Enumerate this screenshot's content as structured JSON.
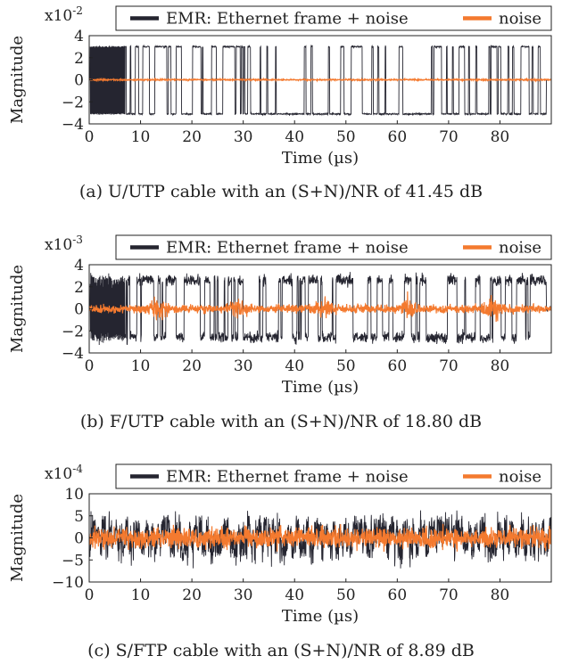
{
  "chart_data": [
    {
      "type": "line",
      "xlabel": "Time (µs)",
      "ylabel": "Magnitude",
      "y_exponent": "x10",
      "y_exponent_power": "-2",
      "xlim": [
        0,
        90
      ],
      "ylim": [
        -4,
        4
      ],
      "x_ticks": [
        0,
        10,
        20,
        30,
        40,
        50,
        60,
        70,
        80
      ],
      "y_ticks": [
        -4,
        -2,
        0,
        2,
        4
      ],
      "legend_placement": "top",
      "grid": false,
      "series": [
        {
          "name": "EMR: Ethernet frame + noise",
          "color": "#252530",
          "amplitude_high": 3.0,
          "amplitude_low": -3.1,
          "preamble_end": 7,
          "frame_end": 89,
          "noise_sd": 0.05
        },
        {
          "name": "noise",
          "color": "#f47a2f",
          "amplitude_high": 0.1,
          "amplitude_low": -0.1,
          "noise_sd": 0.04
        }
      ],
      "caption": "(a) U/UTP cable with an (S+N)/NR of 41.45 dB"
    },
    {
      "type": "line",
      "xlabel": "Time (µs)",
      "ylabel": "Magnitude",
      "y_exponent": "x10",
      "y_exponent_power": "-3",
      "xlim": [
        0,
        90
      ],
      "ylim": [
        -4,
        4
      ],
      "x_ticks": [
        0,
        10,
        20,
        30,
        40,
        50,
        60,
        70,
        80
      ],
      "y_ticks": [
        -4,
        -2,
        0,
        2,
        4
      ],
      "legend_placement": "top",
      "grid": false,
      "series": [
        {
          "name": "EMR: Ethernet frame + noise",
          "color": "#252530",
          "amplitude_high": 2.6,
          "amplitude_low": -2.6,
          "preamble_end": 7,
          "frame_end": 89,
          "noise_sd": 0.35
        },
        {
          "name": "noise",
          "color": "#f47a2f",
          "amplitude_high": 0.4,
          "amplitude_low": -0.4,
          "noise_sd": 0.25
        }
      ],
      "caption": "(b) F/UTP cable with an (S+N)/NR of 18.80 dB"
    },
    {
      "type": "line",
      "xlabel": "Time (µs)",
      "ylabel": "Magnitude",
      "y_exponent": "x10",
      "y_exponent_power": "-4",
      "xlim": [
        0,
        90
      ],
      "ylim": [
        -10,
        10
      ],
      "x_ticks": [
        0,
        10,
        20,
        30,
        40,
        50,
        60,
        70,
        80
      ],
      "y_ticks": [
        -10,
        -5,
        0,
        5,
        10
      ],
      "legend_placement": "top",
      "grid": false,
      "series": [
        {
          "name": "EMR: Ethernet frame + noise",
          "color": "#252530",
          "amplitude_high": 3.0,
          "amplitude_low": -3.0,
          "noise_sd": 2.6
        },
        {
          "name": "noise",
          "color": "#f47a2f",
          "amplitude_high": 1.0,
          "amplitude_low": -1.0,
          "noise_sd": 1.6
        }
      ],
      "caption": "(c) S/FTP cable with an (S+N)/NR of 8.89 dB"
    }
  ]
}
